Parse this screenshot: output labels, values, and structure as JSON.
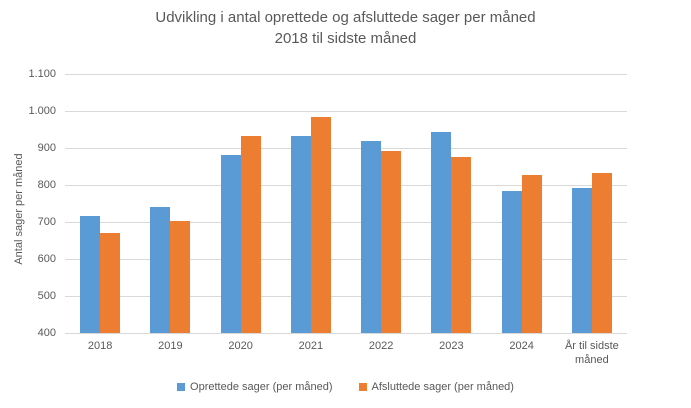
{
  "chart_data": {
    "type": "bar",
    "title_line1": "Udvikling i antal oprettede og afsluttede sager per måned",
    "title_line2": "2018 til sidste måned",
    "ylabel": "Antal sager per måned",
    "xlabel": "",
    "categories": [
      "2018",
      "2019",
      "2020",
      "2021",
      "2022",
      "2023",
      "2024",
      "År til sidste måned"
    ],
    "series": [
      {
        "name": "Oprettede sager (per måned)",
        "color": "#5B9BD5",
        "values": [
          715,
          741,
          882,
          932,
          919,
          943,
          783,
          792
        ]
      },
      {
        "name": "Afsluttede sager (per måned)",
        "color": "#ED7D31",
        "values": [
          671,
          703,
          932,
          984,
          891,
          876,
          828,
          833
        ]
      }
    ],
    "ylim": [
      400,
      1100
    ],
    "ytick_step": 100,
    "ytick_labels": [
      "400",
      "500",
      "600",
      "700",
      "800",
      "900",
      "1.000",
      "1.100"
    ],
    "grid": true,
    "legend_position": "bottom",
    "colors": {
      "text": "#595959",
      "gridline": "#D9D9D9",
      "background": "#FFFFFF"
    }
  }
}
